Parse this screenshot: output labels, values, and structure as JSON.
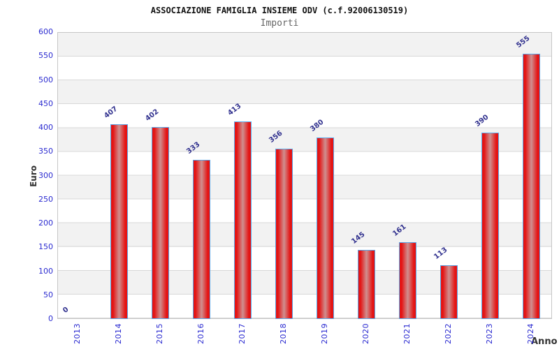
{
  "chart_data": {
    "type": "bar",
    "title": "ASSOCIAZIONE FAMIGLIA INSIEME ODV (c.f.92006130519)",
    "subtitle": "Importi",
    "xlabel": "Anno",
    "ylabel": "Euro",
    "categories": [
      "2013",
      "2014",
      "2015",
      "2016",
      "2017",
      "2018",
      "2019",
      "2020",
      "2021",
      "2022",
      "2023",
      "2024"
    ],
    "values": [
      0,
      407,
      402,
      333,
      413,
      356,
      380,
      145,
      161,
      113,
      390,
      555
    ],
    "ylim": [
      0,
      600
    ],
    "ytick_step": 50,
    "grid": "horizontal-bands-alternating",
    "legend": "none",
    "colors": {
      "title_color": "#111111",
      "subtitle_color": "#666666",
      "tick_color": "#2a2ad0",
      "value_color": "#32328f",
      "axis_title_color": "#333333",
      "band_gray": "#f2f2f2",
      "gridline": "#d8d8d8",
      "plot_border": "#c6c6c6",
      "bar_edge": "#e41414",
      "bar_mid": "#cf8f8f",
      "bar_border": "#58a6e8"
    }
  }
}
